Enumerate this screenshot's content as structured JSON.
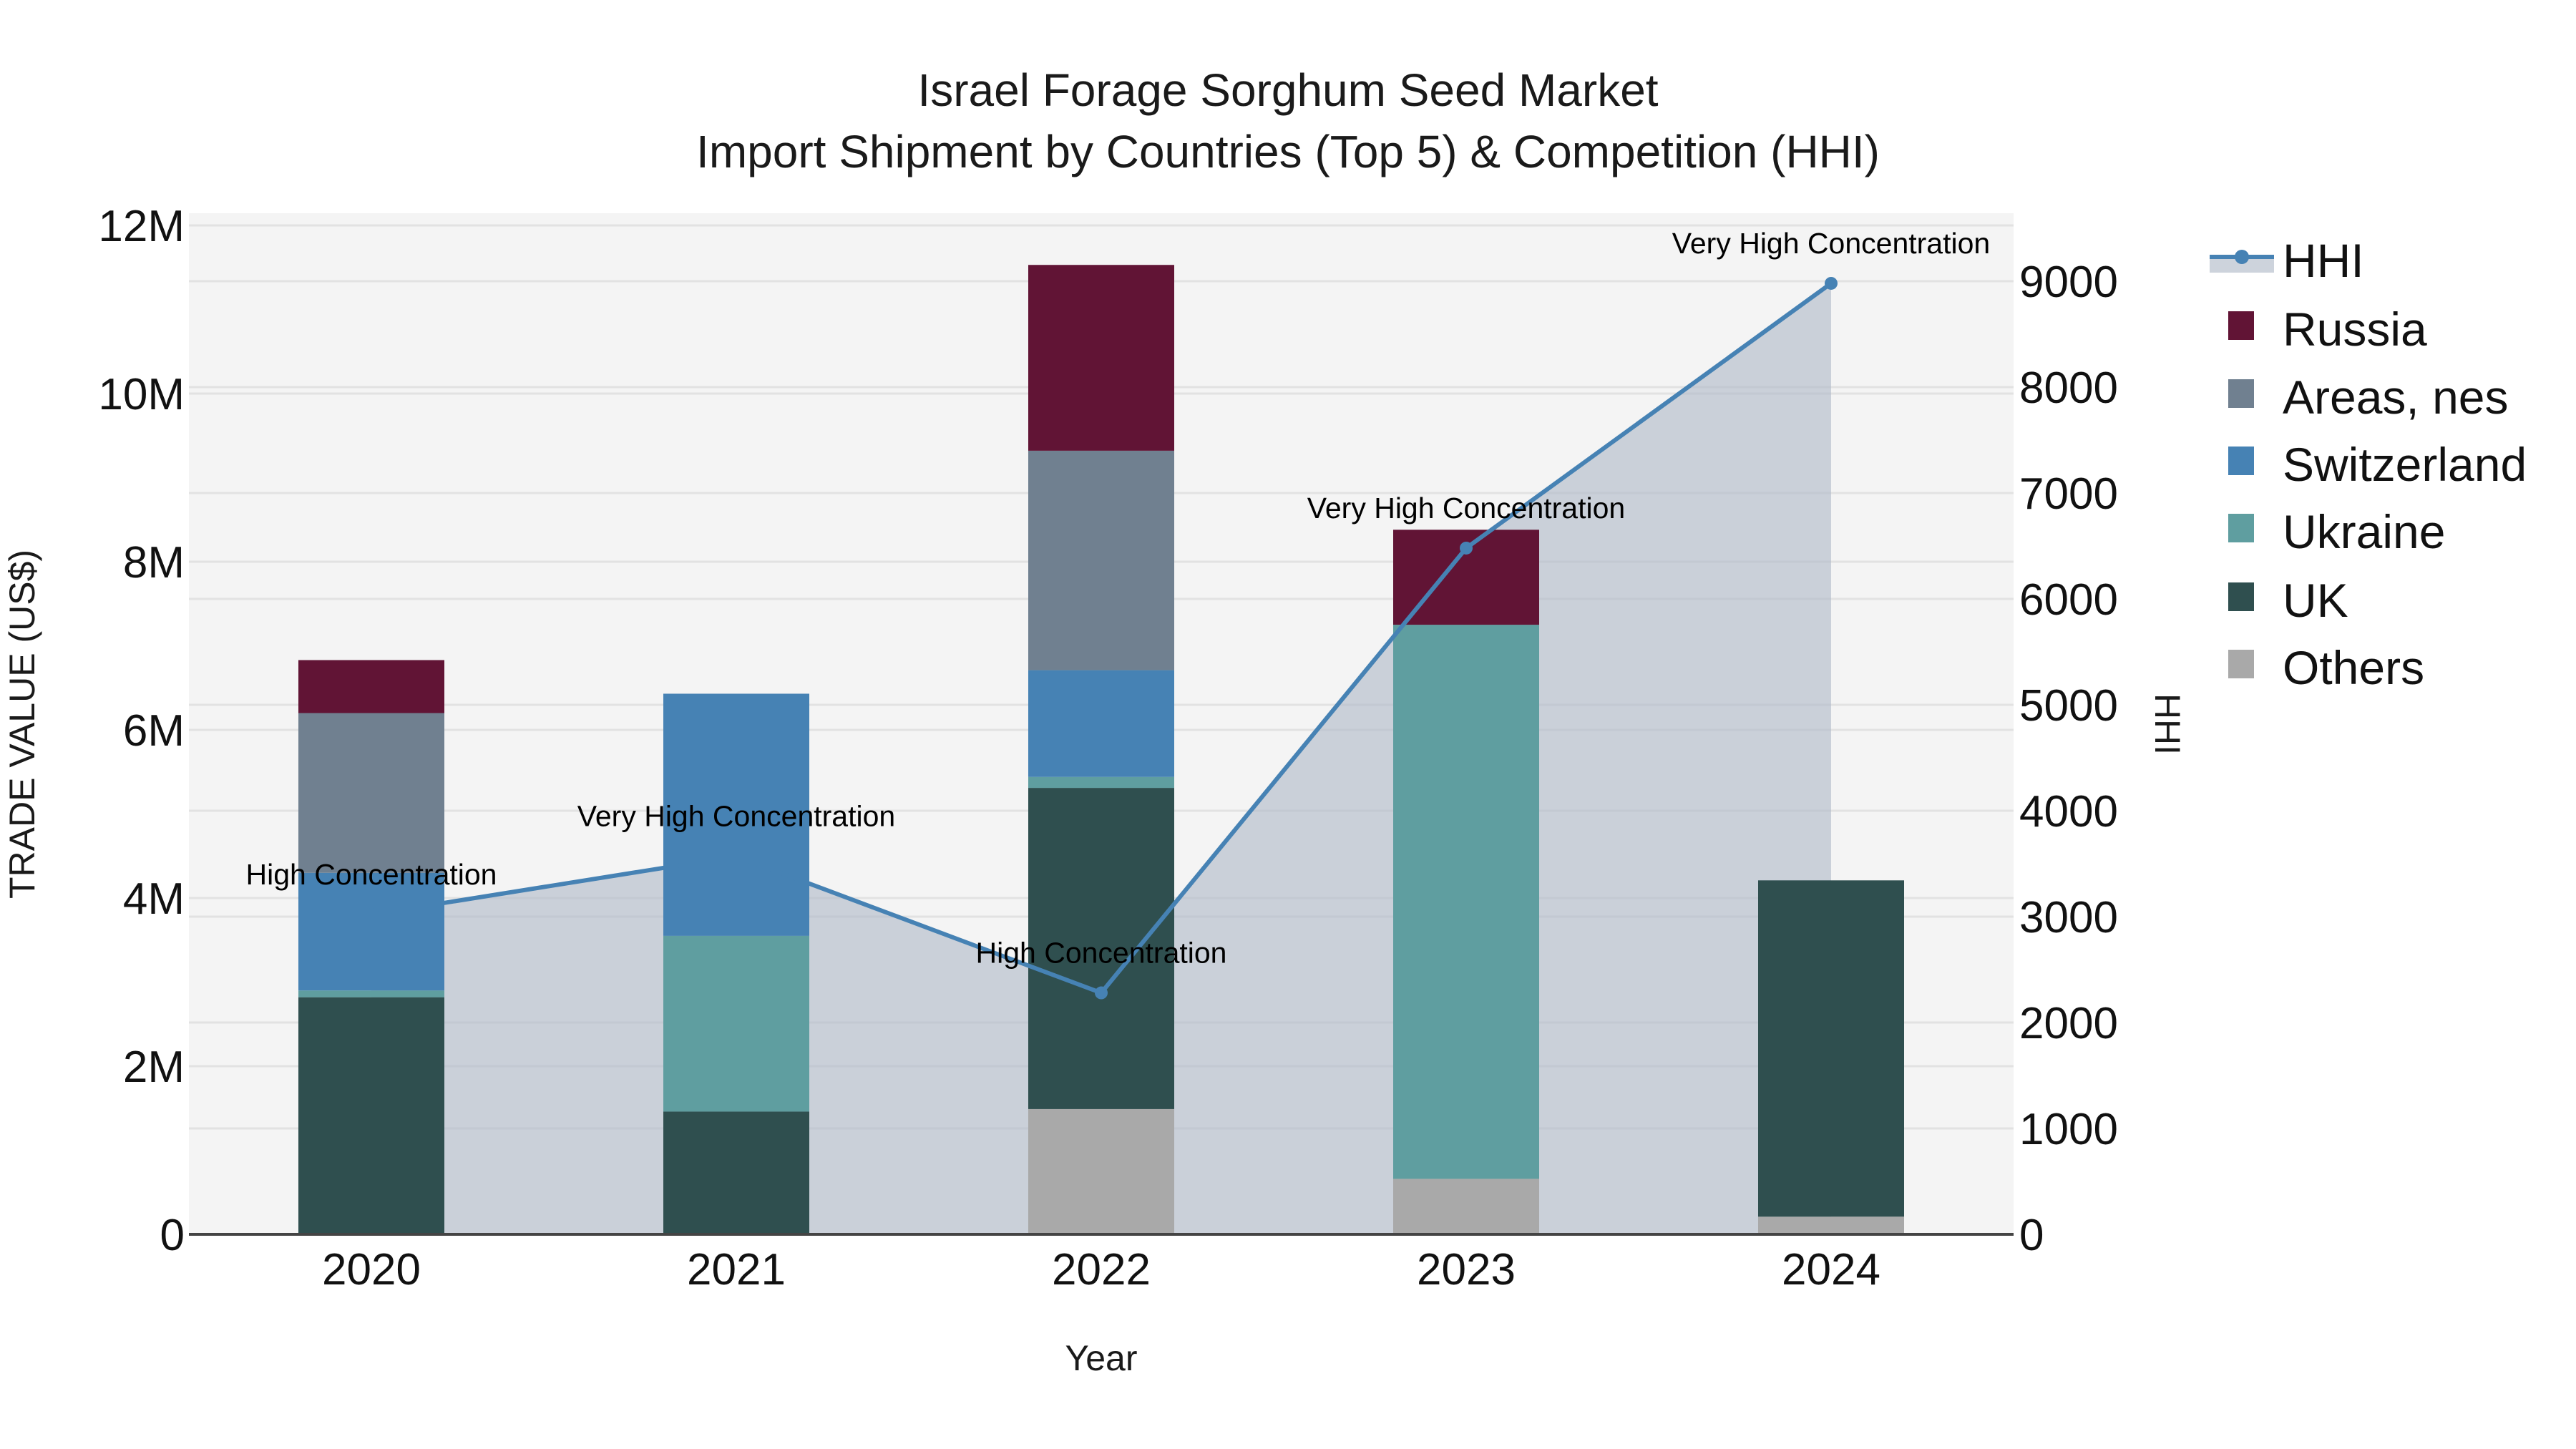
{
  "title": {
    "line1": "Israel Forage Sorghum Seed Market",
    "line2": "Import Shipment by Countries (Top 5) & Competition (HHI)"
  },
  "axes": {
    "x_title": "Year",
    "y_left_title": "TRADE VALUE (US$)",
    "y_right_title": "HHI",
    "y_left_ticks": [
      "0",
      "2M",
      "4M",
      "6M",
      "8M",
      "10M",
      "12M"
    ],
    "y_right_ticks": [
      "0",
      "1000",
      "2000",
      "3000",
      "4000",
      "5000",
      "6000",
      "7000",
      "8000",
      "9000"
    ]
  },
  "legend": {
    "items": [
      {
        "name": "HHI",
        "type": "line",
        "color": "#4682b4"
      },
      {
        "name": "Russia",
        "type": "bar",
        "color": "#611435"
      },
      {
        "name": "Areas, nes",
        "type": "bar",
        "color": "#708090"
      },
      {
        "name": "Switzerland",
        "type": "bar",
        "color": "#4682b4"
      },
      {
        "name": "Ukraine",
        "type": "bar",
        "color": "#5f9ea0"
      },
      {
        "name": "UK",
        "type": "bar",
        "color": "#2f4f4f"
      },
      {
        "name": "Others",
        "type": "bar",
        "color": "#a9a9a9"
      }
    ]
  },
  "colors": {
    "plot_bg": "#f4f4f4",
    "grid": "#e2e2e2",
    "hhi_line": "#4682b4",
    "hhi_fill": "rgba(176,186,200,0.62)"
  },
  "chart_data": {
    "type": "bar",
    "subtype": "stacked bar + line (secondary axis)",
    "title": "Israel Forage Sorghum Seed Market — Import Shipment by Countries (Top 5) & Competition (HHI)",
    "xlabel": "Year",
    "ylabel": "TRADE VALUE (US$)",
    "y2label": "HHI",
    "ylim": [
      0,
      12000000
    ],
    "y2lim": [
      0,
      9000
    ],
    "grid": true,
    "legend_position": "right",
    "categories": [
      "2020",
      "2021",
      "2022",
      "2023",
      "2024"
    ],
    "series": [
      {
        "name": "Others",
        "color": "#a9a9a9",
        "values": [
          0,
          0,
          1490000,
          660000,
          210000
        ]
      },
      {
        "name": "UK",
        "color": "#2f4f4f",
        "values": [
          2820000,
          1460000,
          3820000,
          0,
          4000000
        ]
      },
      {
        "name": "Ukraine",
        "color": "#5f9ea0",
        "values": [
          80000,
          2090000,
          130000,
          6590000,
          0
        ]
      },
      {
        "name": "Switzerland",
        "color": "#4682b4",
        "values": [
          1400000,
          2880000,
          1270000,
          0,
          0
        ]
      },
      {
        "name": "Areas, nes",
        "color": "#708090",
        "values": [
          1900000,
          0,
          2610000,
          0,
          0
        ]
      },
      {
        "name": "Russia",
        "color": "#611435",
        "values": [
          630000,
          0,
          2210000,
          1130000,
          0
        ]
      }
    ],
    "line_series": {
      "name": "HHI",
      "axis": "right",
      "color": "#4682b4",
      "values": [
        3020,
        3570,
        2280,
        6480,
        8980
      ],
      "annotations": [
        "High Concentration",
        "Very High Concentration",
        "High Concentration",
        "Very High Concentration",
        "Very High Concentration"
      ]
    },
    "totals": [
      6830000,
      6430000,
      11530000,
      8380000,
      4210000
    ]
  }
}
